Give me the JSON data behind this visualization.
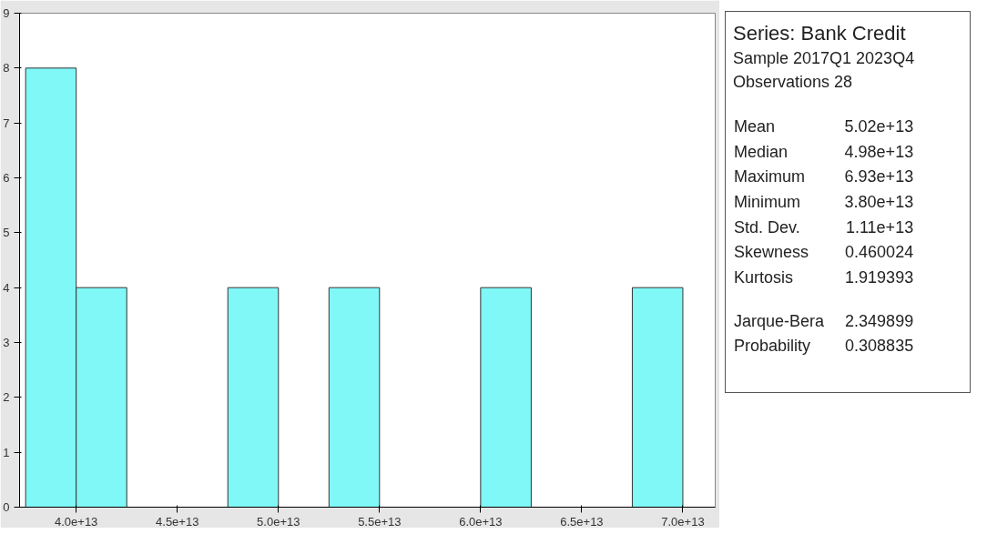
{
  "chart_data": {
    "type": "histogram",
    "bins": [
      37500000000000.0,
      40000000000000.0,
      42500000000000.0,
      45000000000000.0,
      47500000000000.0,
      50000000000000.0,
      52500000000000.0,
      55000000000000.0,
      57500000000000.0,
      60000000000000.0,
      62500000000000.0,
      65000000000000.0,
      67500000000000.0,
      70000000000000.0
    ],
    "values": [
      8,
      4,
      0,
      0,
      4,
      0,
      4,
      0,
      0,
      4,
      0,
      0,
      4
    ],
    "color": "#80f8f8",
    "xlim": [
      37200000000000.0,
      71600000000000.0
    ],
    "xticks": [
      {
        "value": 40000000000000.0,
        "label": "4.0e+13"
      },
      {
        "value": 45000000000000.0,
        "label": "4.5e+13"
      },
      {
        "value": 50000000000000.0,
        "label": "5.0e+13"
      },
      {
        "value": 55000000000000.0,
        "label": "5.5e+13"
      },
      {
        "value": 60000000000000.0,
        "label": "6.0e+13"
      },
      {
        "value": 65000000000000.0,
        "label": "6.5e+13"
      },
      {
        "value": 70000000000000.0,
        "label": "7.0e+13"
      }
    ],
    "ylim": [
      0,
      9
    ],
    "yticks": [
      0,
      1,
      2,
      3,
      4,
      5,
      6,
      7,
      8,
      9
    ],
    "grid": false,
    "annotations": [
      "Series: Bank Credit",
      "Sample 2017Q1 2023Q4",
      "Observations 28",
      "Mean",
      "5.02e+13",
      "Median",
      "4.98e+13",
      "Maximum",
      "6.93e+13",
      "Minimum",
      "3.80e+13",
      "Std. Dev.",
      "1.11e+13",
      "Skewness",
      "0.460024",
      "Kurtosis",
      "1.919393",
      "Jarque-Bera",
      "2.349899",
      "Probability",
      "0.308835"
    ]
  }
}
